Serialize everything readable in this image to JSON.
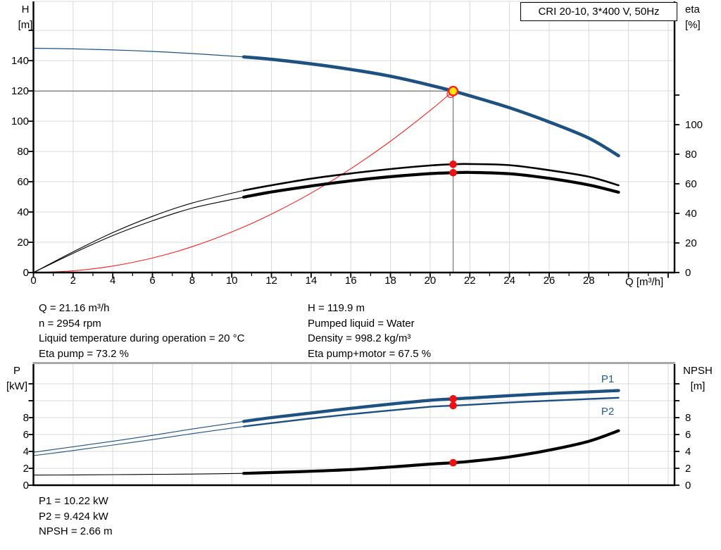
{
  "title_box": {
    "label": "CRI 20-10, 3*400 V, 50Hz"
  },
  "colors": {
    "curve_blue": "#1d5182",
    "label_blue": "#1f5c9e",
    "curve_black": "#000000",
    "system_red": "#ff2020",
    "duty_yellow": "#ffe60a",
    "dot_red": "#ee1111",
    "grid": "#d9d9d9",
    "duty_gray": "#7d7d7d",
    "border_gray": "#a8a8a8",
    "axis": "#000000"
  },
  "info_top": {
    "left": [
      "Q = 21.16 m³/h",
      "n = 2954 rpm",
      "Liquid temperature during operation = 20 °C",
      "Eta pump = 73.2 %"
    ],
    "right": [
      "H = 119.9 m",
      "Pumped liquid = Water",
      "Density = 998.2 kg/m³",
      "Eta pump+motor = 67.5 %"
    ]
  },
  "info_bottom": [
    "P1 = 10.22 kW",
    "P2 = 9.424 kW",
    "NPSH = 2.66 m"
  ],
  "chart_data": [
    {
      "type": "line",
      "name": "qh-chart",
      "title": "CRI 20-10, 3*400 V, 50Hz",
      "xlabel": "Q [m³/h]",
      "ylabel_left": [
        "H",
        "[m]"
      ],
      "ylabel_right": [
        "eta",
        "[%]"
      ],
      "xlim": [
        0,
        32.3
      ],
      "x_tick_step_major": 2,
      "x_tick_step_minor": 1,
      "x_tick_labels": [
        0,
        2,
        4,
        6,
        8,
        10,
        12,
        14,
        16,
        18,
        20,
        22,
        24,
        26,
        28
      ],
      "ylim_left": [
        0,
        179
      ],
      "y_left_ticks": [
        0,
        20,
        40,
        60,
        80,
        100,
        120,
        140,
        160
      ],
      "y_left_tick_labels": [
        0,
        20,
        40,
        60,
        80,
        100,
        120,
        140
      ],
      "ylim_right": [
        0,
        183
      ],
      "y_right_ticks": [
        0,
        20,
        40,
        60,
        80,
        100,
        120
      ],
      "y_right_tick_labels": [
        0,
        20,
        40,
        60,
        80,
        100
      ],
      "grid": true,
      "series": [
        {
          "name": "head-curve",
          "label": "H",
          "axis": "left",
          "color": "#1d5182",
          "thick_from": 10.6,
          "w_thin": 1.2,
          "w_thick": 4.6,
          "x": [
            0,
            2,
            4,
            6,
            8,
            10.6,
            12,
            14,
            16,
            18,
            20,
            21.16,
            22,
            24,
            26,
            28,
            29.5
          ],
          "y": [
            148.2,
            147.8,
            147.1,
            146.1,
            144.7,
            142.5,
            140.9,
            137.9,
            134.2,
            129.7,
            123.8,
            119.9,
            116.8,
            108.9,
            99.5,
            88.8,
            77.2
          ]
        },
        {
          "name": "eta-pump-curve",
          "label": "Eta pump",
          "axis": "right",
          "color": "#000000",
          "thick_from": 10.6,
          "w_thin": 1.1,
          "w_thick": 2.6,
          "x": [
            0,
            2,
            4,
            6,
            8,
            10.6,
            12,
            14,
            16,
            18,
            20,
            21.16,
            22,
            24,
            26,
            28,
            29.5
          ],
          "y": [
            0,
            14,
            27,
            38,
            47,
            55.5,
            59,
            63.5,
            67,
            70,
            72.4,
            73.2,
            73.4,
            72.6,
            69.2,
            64.8,
            59
          ]
        },
        {
          "name": "eta-pump-motor-curve",
          "label": "Eta pump+motor",
          "axis": "right",
          "color": "#000000",
          "thick_from": 10.6,
          "w_thin": 1.1,
          "w_thick": 4.2,
          "x": [
            0,
            2,
            4,
            6,
            8,
            10.6,
            12,
            14,
            16,
            18,
            20,
            21.16,
            22,
            24,
            26,
            28,
            29.5
          ],
          "y": [
            0,
            13,
            25,
            35,
            43.5,
            51,
            54.5,
            58.5,
            62,
            64.8,
            66.9,
            67.5,
            67.7,
            66.8,
            63.7,
            59.2,
            54.3
          ]
        },
        {
          "name": "system-curve",
          "label": "System curve",
          "axis": "left",
          "color": "#ff2020",
          "w_thin": 1.1,
          "x": [
            0,
            2,
            4,
            6,
            8,
            10,
            12,
            14,
            16,
            18,
            20,
            21.16
          ],
          "y": [
            0,
            1.1,
            4.3,
            9.6,
            17.1,
            26.8,
            38.6,
            52.5,
            68.6,
            86.8,
            107.1,
            119.9
          ]
        }
      ],
      "duty_point": {
        "q": 21.16,
        "h": 119.9,
        "eta_pump": 73.2,
        "eta_pump_motor": 67.5
      }
    },
    {
      "type": "line",
      "name": "power-npsh-chart",
      "xlabel": "",
      "ylabel_left": [
        "P",
        "[kW]"
      ],
      "ylabel_right": [
        "NPSH",
        "[m]"
      ],
      "xlim": [
        0,
        32.3
      ],
      "ylim": [
        0,
        14.3
      ],
      "y_ticks": [
        0,
        2,
        4,
        6,
        8,
        10,
        12
      ],
      "y_tick_labels": [
        0,
        2,
        4,
        6,
        8
      ],
      "grid": true,
      "series": [
        {
          "name": "p1-curve",
          "label": "P1",
          "color": "#1d5182",
          "thick_from": 10.6,
          "w_thin": 1.1,
          "w_thick": 4.4,
          "x": [
            0,
            2,
            4,
            6,
            8,
            10.6,
            12,
            14,
            16,
            18,
            20,
            21.16,
            22,
            24,
            26,
            28,
            29.5
          ],
          "y": [
            3.9,
            4.55,
            5.2,
            5.9,
            6.65,
            7.55,
            8.0,
            8.55,
            9.1,
            9.6,
            10.05,
            10.22,
            10.32,
            10.6,
            10.85,
            11.05,
            11.2
          ]
        },
        {
          "name": "p2-curve",
          "label": "P2",
          "color": "#1d5182",
          "thick_from": 10.6,
          "w_thin": 1.1,
          "w_thick": 2.4,
          "x": [
            0,
            2,
            4,
            6,
            8,
            10.6,
            12,
            14,
            16,
            18,
            20,
            21.16,
            22,
            24,
            26,
            28,
            29.5
          ],
          "y": [
            3.5,
            4.1,
            4.75,
            5.4,
            6.1,
            6.95,
            7.35,
            7.9,
            8.4,
            8.85,
            9.28,
            9.42,
            9.52,
            9.78,
            10.0,
            10.2,
            10.35
          ]
        },
        {
          "name": "npsh-curve",
          "label": "NPSH",
          "color": "#000000",
          "thick_from": 10.6,
          "w_thin": 1.1,
          "w_thick": 4.2,
          "x": [
            0,
            2,
            4,
            6,
            8,
            10.6,
            12,
            14,
            16,
            18,
            20,
            21.16,
            22,
            24,
            26,
            28,
            29.5
          ],
          "y": [
            1.2,
            1.22,
            1.25,
            1.28,
            1.32,
            1.4,
            1.5,
            1.65,
            1.85,
            2.15,
            2.5,
            2.66,
            2.82,
            3.35,
            4.15,
            5.2,
            6.45
          ]
        }
      ],
      "duty_point": {
        "q": 21.16,
        "p1": 10.22,
        "p2": 9.424,
        "npsh": 2.66
      }
    }
  ]
}
